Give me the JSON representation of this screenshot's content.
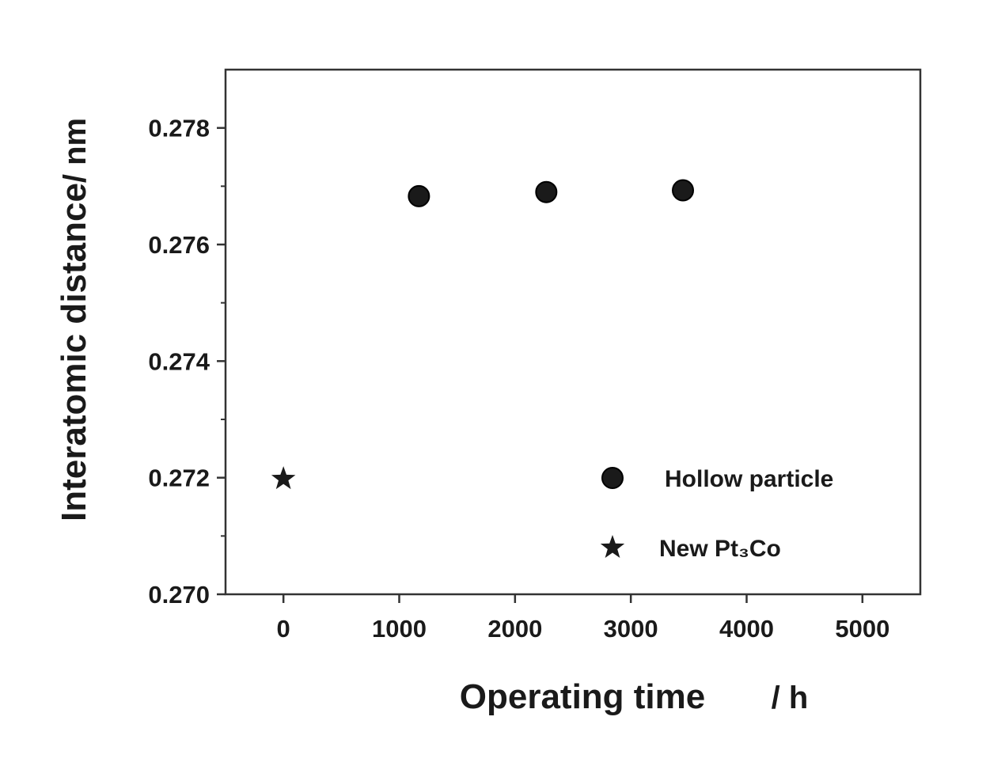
{
  "chart_data": {
    "type": "scatter",
    "title": "",
    "xlabel": "Operating time",
    "xunit": "/ h",
    "ylabel": "Interatomic distance",
    "yunit": "/ nm",
    "xlim": [
      -500,
      5500
    ],
    "ylim": [
      0.27,
      0.279
    ],
    "xticks": [
      0,
      1000,
      2000,
      3000,
      4000,
      5000
    ],
    "xtick_labels": [
      "0",
      "1000",
      "2000",
      "3000",
      "4000",
      "5000"
    ],
    "yticks": [
      0.27,
      0.272,
      0.274,
      0.276,
      0.278
    ],
    "ytick_labels": [
      "0.270",
      "0.272",
      "0.274",
      "0.276",
      "0.278"
    ],
    "grid": false,
    "legend_position": "bottom-right",
    "series": [
      {
        "name": "Hollow particle",
        "marker": "circle",
        "color": "#1a1a1a",
        "points": [
          {
            "x": 1170,
            "y": 0.27683
          },
          {
            "x": 2270,
            "y": 0.2769
          },
          {
            "x": 3450,
            "y": 0.27693
          }
        ]
      },
      {
        "name": "New Pt₃Co",
        "marker": "star",
        "color": "#1a1a1a",
        "points": [
          {
            "x": 0,
            "y": 0.27198
          }
        ]
      }
    ]
  }
}
